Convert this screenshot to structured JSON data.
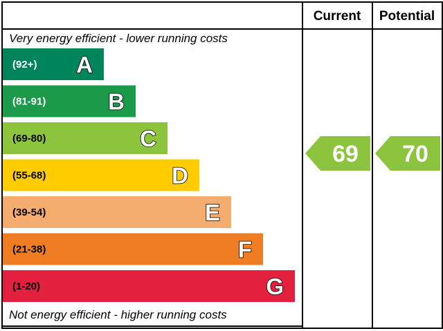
{
  "chart_data": {
    "type": "bar",
    "columns": {
      "current": "Current",
      "potential": "Potential"
    },
    "top_note": "Very energy efficient - lower running costs",
    "bottom_note": "Not energy efficient - higher running costs",
    "bands": [
      {
        "letter": "A",
        "range": "(92+)",
        "min": 92,
        "max": 100,
        "color": "#00855a",
        "text_color": "#ffffff"
      },
      {
        "letter": "B",
        "range": "(81-91)",
        "min": 81,
        "max": 91,
        "color": "#1b9a4a",
        "text_color": "#ffffff"
      },
      {
        "letter": "C",
        "range": "(69-80)",
        "min": 69,
        "max": 80,
        "color": "#8cc43e",
        "text_color": "#000000"
      },
      {
        "letter": "D",
        "range": "(55-68)",
        "min": 55,
        "max": 68,
        "color": "#ffcc00",
        "text_color": "#000000"
      },
      {
        "letter": "E",
        "range": "(39-54)",
        "min": 39,
        "max": 54,
        "color": "#f5ac6f",
        "text_color": "#000000"
      },
      {
        "letter": "F",
        "range": "(21-38)",
        "min": 21,
        "max": 38,
        "color": "#ee7d23",
        "text_color": "#000000"
      },
      {
        "letter": "G",
        "range": "(1-20)",
        "min": 1,
        "max": 20,
        "color": "#e3203d",
        "text_color": "#000000"
      }
    ],
    "current": {
      "value": 69,
      "label": "69",
      "band": "C",
      "color": "#8cc43e"
    },
    "potential": {
      "value": 70,
      "label": "70",
      "band": "C",
      "color": "#8cc43e"
    }
  }
}
